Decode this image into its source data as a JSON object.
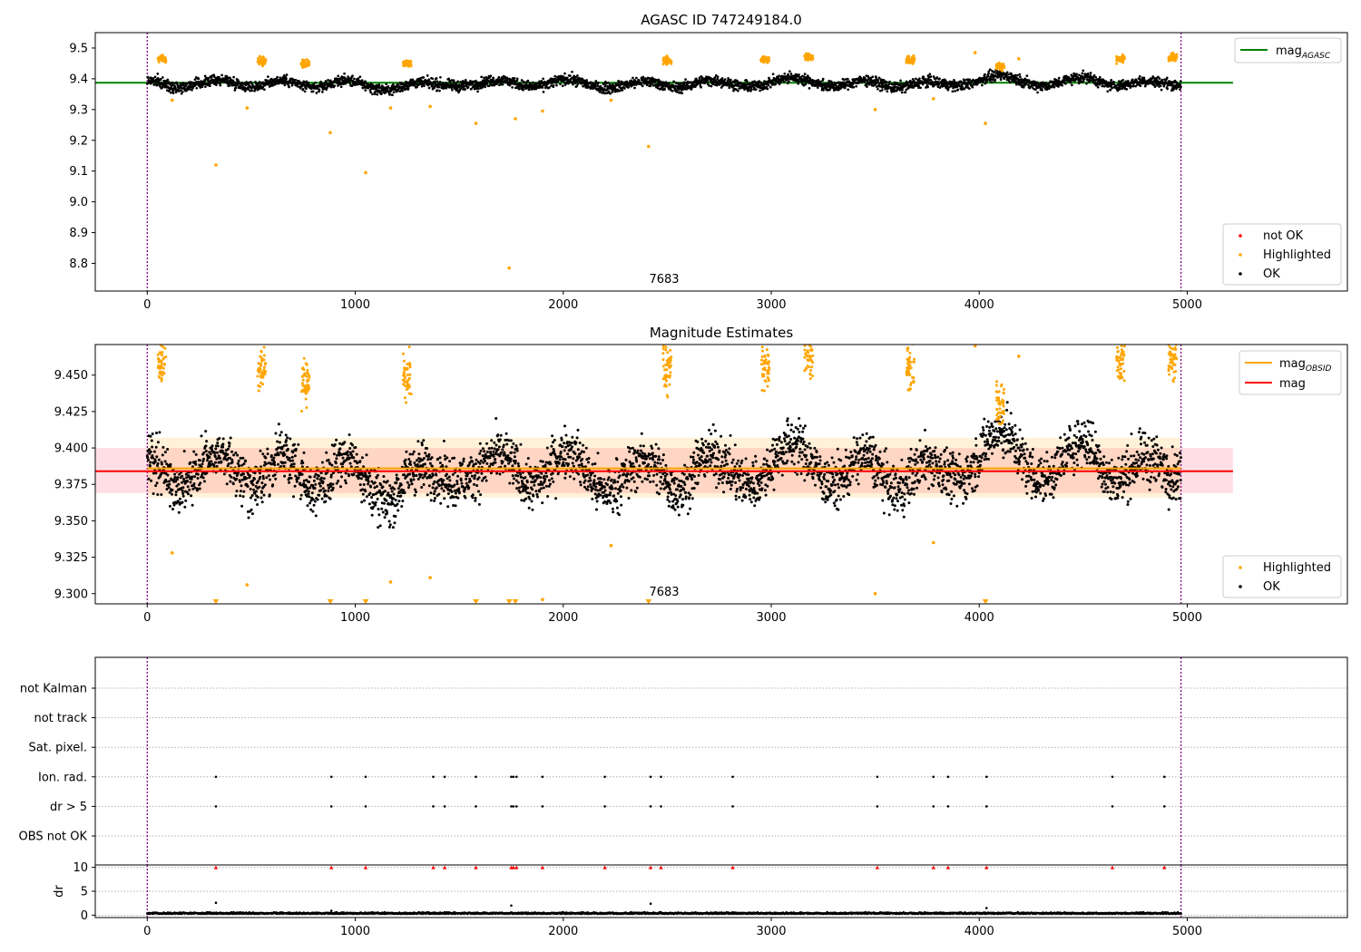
{
  "chart_data": [
    {
      "panel": "top",
      "type": "scatter",
      "title": "AGASC ID 747249184.0",
      "xlim": [
        -250,
        5770
      ],
      "ylim": [
        8.71,
        9.55
      ],
      "xticks": [
        0,
        1000,
        2000,
        3000,
        4000,
        5000
      ],
      "yticks": [
        8.8,
        8.9,
        9.0,
        9.1,
        9.2,
        9.3,
        9.4,
        9.5
      ],
      "ytick_labels": [
        "8.8",
        "8.9",
        "9.0",
        "9.1",
        "9.2",
        "9.3",
        "9.4",
        "9.5"
      ],
      "annotation": {
        "text": "7683",
        "x": 2480,
        "y": 8.76
      },
      "vlines": [
        0,
        4970
      ],
      "series": [
        {
          "name": "mag_AGASC",
          "type": "hline",
          "value": 9.387,
          "x_range": [
            -250,
            5220
          ],
          "color": "#008000"
        },
        {
          "name": "OK",
          "color": "#000000",
          "x_range": [
            0,
            4970
          ],
          "baseline": 9.383,
          "offsets": [
            {
              "x": 0,
              "dy": 0.012
            },
            {
              "x": 150,
              "dy": -0.01
            },
            {
              "x": 350,
              "dy": 0.013
            },
            {
              "x": 500,
              "dy": -0.008
            },
            {
              "x": 650,
              "dy": 0.012
            },
            {
              "x": 800,
              "dy": -0.012
            },
            {
              "x": 950,
              "dy": 0.011
            },
            {
              "x": 1150,
              "dy": -0.02
            },
            {
              "x": 1300,
              "dy": 0.004
            },
            {
              "x": 1500,
              "dy": -0.006
            },
            {
              "x": 1700,
              "dy": 0.012
            },
            {
              "x": 1850,
              "dy": -0.009
            },
            {
              "x": 2020,
              "dy": 0.015
            },
            {
              "x": 2200,
              "dy": -0.013
            },
            {
              "x": 2400,
              "dy": 0.008
            },
            {
              "x": 2550,
              "dy": -0.012
            },
            {
              "x": 2700,
              "dy": 0.012
            },
            {
              "x": 2900,
              "dy": -0.008
            },
            {
              "x": 3100,
              "dy": 0.02
            },
            {
              "x": 3300,
              "dy": -0.008
            },
            {
              "x": 3450,
              "dy": 0.012
            },
            {
              "x": 3600,
              "dy": -0.012
            },
            {
              "x": 3750,
              "dy": 0.008
            },
            {
              "x": 3900,
              "dy": -0.005
            },
            {
              "x": 4100,
              "dy": 0.028
            },
            {
              "x": 4300,
              "dy": -0.005
            },
            {
              "x": 4500,
              "dy": 0.022
            },
            {
              "x": 4650,
              "dy": -0.006
            },
            {
              "x": 4800,
              "dy": 0.01
            },
            {
              "x": 4970,
              "dy": -0.003
            }
          ]
        },
        {
          "name": "Highlighted",
          "color": "#ffa500",
          "clusters": [
            {
              "x": 70,
              "y": 9.465
            },
            {
              "x": 550,
              "y": 9.46
            },
            {
              "x": 760,
              "y": 9.45
            },
            {
              "x": 1250,
              "y": 9.45
            },
            {
              "x": 2500,
              "y": 9.46
            },
            {
              "x": 2970,
              "y": 9.46
            },
            {
              "x": 3180,
              "y": 9.47
            },
            {
              "x": 3670,
              "y": 9.46
            },
            {
              "x": 4100,
              "y": 9.44
            },
            {
              "x": 4680,
              "y": 9.465
            },
            {
              "x": 4930,
              "y": 9.47
            }
          ],
          "points": [
            {
              "x": 120,
              "y": 9.33
            },
            {
              "x": 330,
              "y": 9.12
            },
            {
              "x": 480,
              "y": 9.305
            },
            {
              "x": 880,
              "y": 9.225
            },
            {
              "x": 1050,
              "y": 9.095
            },
            {
              "x": 1170,
              "y": 9.305
            },
            {
              "x": 1360,
              "y": 9.31
            },
            {
              "x": 1580,
              "y": 9.255
            },
            {
              "x": 1740,
              "y": 8.785
            },
            {
              "x": 1770,
              "y": 9.27
            },
            {
              "x": 1900,
              "y": 9.295
            },
            {
              "x": 2230,
              "y": 9.33
            },
            {
              "x": 2410,
              "y": 9.18
            },
            {
              "x": 3500,
              "y": 9.3
            },
            {
              "x": 3780,
              "y": 9.335
            },
            {
              "x": 3980,
              "y": 9.485
            },
            {
              "x": 4030,
              "y": 9.255
            },
            {
              "x": 4190,
              "y": 9.465
            }
          ]
        },
        {
          "name": "not OK",
          "color": "#ff0000",
          "points": []
        }
      ],
      "legends": [
        {
          "position": "top-right",
          "entries": [
            {
              "label": "mag",
              "sub": "AGASC",
              "kind": "line",
              "color": "#008000"
            }
          ]
        },
        {
          "position": "bottom-right",
          "entries": [
            {
              "label": "not OK",
              "kind": "dot",
              "color": "#ff0000"
            },
            {
              "label": "Highlighted",
              "kind": "dot",
              "color": "#ffa500"
            },
            {
              "label": "OK",
              "kind": "dot",
              "color": "#000000"
            }
          ]
        }
      ]
    },
    {
      "panel": "middle",
      "type": "scatter",
      "title": "Magnitude Estimates",
      "xlim": [
        -250,
        5770
      ],
      "ylim": [
        9.293,
        9.471
      ],
      "xticks": [
        0,
        1000,
        2000,
        3000,
        4000,
        5000
      ],
      "yticks": [
        9.3,
        9.325,
        9.35,
        9.375,
        9.4,
        9.425,
        9.45
      ],
      "ytick_labels": [
        "9.300",
        "9.325",
        "9.350",
        "9.375",
        "9.400",
        "9.425",
        "9.450"
      ],
      "annotation": {
        "text": "7683",
        "x": 2480,
        "y": 9.299
      },
      "vlines": [
        0,
        4970
      ],
      "bands": [
        {
          "color": "#ffc0cb",
          "y": [
            9.369,
            9.4
          ],
          "x_range": [
            -250,
            5220
          ],
          "alpha": 0.5
        },
        {
          "color": "#ffa500",
          "y": [
            9.366,
            9.407
          ],
          "x_range": [
            0,
            4970
          ],
          "alpha": 0.15
        }
      ],
      "series": [
        {
          "name": "mag_OBSID",
          "type": "line",
          "color": "#ffa500",
          "x": [
            0,
            4970
          ],
          "y": [
            9.386,
            9.386
          ]
        },
        {
          "name": "mag",
          "type": "hline",
          "color": "#ff0000",
          "value": 9.384,
          "x_range": [
            -250,
            5220
          ]
        },
        {
          "name": "OK",
          "color": "#000000",
          "x_range": [
            0,
            4970
          ],
          "baseline": 9.383
        },
        {
          "name": "Highlighted",
          "color": "#ffa500",
          "clusters": [
            {
              "x": 70,
              "y": 9.462
            },
            {
              "x": 550,
              "y": 9.455
            },
            {
              "x": 760,
              "y": 9.445
            },
            {
              "x": 1250,
              "y": 9.445
            },
            {
              "x": 2500,
              "y": 9.455
            },
            {
              "x": 2970,
              "y": 9.455
            },
            {
              "x": 3180,
              "y": 9.463
            },
            {
              "x": 3670,
              "y": 9.455
            },
            {
              "x": 4100,
              "y": 9.43
            },
            {
              "x": 4680,
              "y": 9.458
            },
            {
              "x": 4930,
              "y": 9.462
            }
          ],
          "points": [
            {
              "x": 120,
              "y": 9.328
            },
            {
              "x": 480,
              "y": 9.306
            },
            {
              "x": 1170,
              "y": 9.308
            },
            {
              "x": 1360,
              "y": 9.311
            },
            {
              "x": 1900,
              "y": 9.296
            },
            {
              "x": 2230,
              "y": 9.333
            },
            {
              "x": 3500,
              "y": 9.3
            },
            {
              "x": 3780,
              "y": 9.335
            },
            {
              "x": 3980,
              "y": 9.47
            },
            {
              "x": 4190,
              "y": 9.463
            }
          ],
          "clipped_low": [
            330,
            880,
            1050,
            1580,
            1740,
            1770,
            2410,
            4030
          ]
        }
      ],
      "legends": [
        {
          "position": "top-right",
          "entries": [
            {
              "label": "mag",
              "sub": "OBSID",
              "kind": "line",
              "color": "#ffa500"
            },
            {
              "label": "mag",
              "kind": "line",
              "color": "#ff0000"
            }
          ]
        },
        {
          "position": "bottom-right",
          "entries": [
            {
              "label": "Highlighted",
              "kind": "dot",
              "color": "#ffa500"
            },
            {
              "label": "OK",
              "kind": "dot",
              "color": "#000000"
            }
          ]
        }
      ]
    },
    {
      "panel": "flags",
      "type": "scatter",
      "xlim": [
        -250,
        5770
      ],
      "categories": [
        "OBS not OK",
        "dr > 5",
        "Ion. rad.",
        "Sat. pixel.",
        "not track",
        "not Kalman"
      ],
      "grid": true,
      "vlines": [
        0,
        4970
      ],
      "series": [
        {
          "name": "dr > 5",
          "x": [
            330,
            885,
            1050,
            1375,
            1430,
            1580,
            1750,
            1760,
            1775,
            1900,
            2200,
            2420,
            2470,
            2815,
            3510,
            3780,
            3850,
            4035,
            4640,
            4890
          ]
        },
        {
          "name": "Ion. rad.",
          "x": [
            330,
            885,
            1050,
            1375,
            1430,
            1580,
            1750,
            1760,
            1775,
            1900,
            2200,
            2420,
            2470,
            2815,
            3510,
            3780,
            3850,
            4035,
            4640,
            4890
          ]
        }
      ]
    },
    {
      "panel": "dr",
      "type": "scatter",
      "ylabel": "dr",
      "xlim": [
        -250,
        5770
      ],
      "ylim": [
        -0.5,
        10.5
      ],
      "xticks": [
        0,
        1000,
        2000,
        3000,
        4000,
        5000
      ],
      "yticks": [
        0,
        5,
        10
      ],
      "grid": true,
      "vlines": [
        0,
        4970
      ],
      "series": [
        {
          "name": "dr",
          "color": "#000000",
          "baseline": 0.3,
          "x_range": [
            0,
            4970
          ],
          "outliers": [
            {
              "x": 330,
              "y": 2.6
            },
            {
              "x": 1750,
              "y": 2.0
            },
            {
              "x": 2420,
              "y": 2.4
            },
            {
              "x": 4035,
              "y": 1.5
            },
            {
              "x": 885,
              "y": 0.9
            }
          ]
        },
        {
          "name": "dr > 10",
          "color": "#ff0000",
          "marker": "triangle-up",
          "y": 10,
          "x": [
            330,
            885,
            1050,
            1375,
            1430,
            1580,
            1750,
            1760,
            1775,
            1900,
            2200,
            2420,
            2470,
            2815,
            3510,
            3780,
            3850,
            4035,
            4640,
            4890
          ]
        }
      ]
    }
  ]
}
